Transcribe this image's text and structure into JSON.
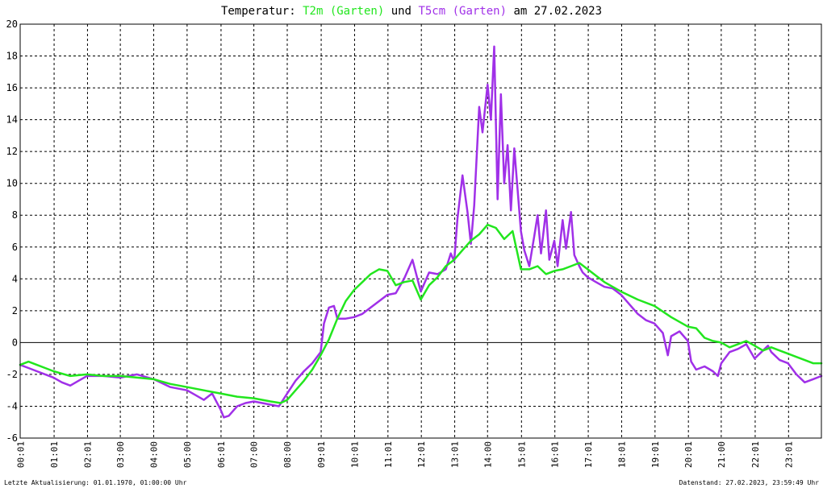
{
  "title": {
    "prefix": "Temperatur:",
    "series1": "T2m (Garten)",
    "mid": "und",
    "series2": "T5cm (Garten)",
    "suffix": "am 27.02.2023"
  },
  "footer": {
    "left": "Letzte Aktualisierung: 01.01.1970, 01:00:00 Uhr",
    "right": "Datenstand: 27.02.2023, 23:59:49 Uhr"
  },
  "colors": {
    "t2m": "#22e61e",
    "t5cm": "#a030e8",
    "grid": "#000000",
    "zero_line": "#000000"
  },
  "chart_data": {
    "type": "line",
    "title": "Temperatur: T2m (Garten) und T5cm (Garten) am 27.02.2023",
    "xlabel": "",
    "ylabel": "",
    "xlim": [
      0,
      24
    ],
    "ylim": [
      -6,
      20
    ],
    "y_ticks": [
      -6,
      -4,
      -2,
      0,
      2,
      4,
      6,
      8,
      10,
      12,
      14,
      16,
      18,
      20
    ],
    "x_tick_hours": [
      0.0167,
      1.0167,
      2.0167,
      3.0,
      4.0,
      5.0,
      6.0167,
      7.0,
      8.0,
      9.0167,
      10.0167,
      11.0167,
      12.0167,
      13.0167,
      14.0,
      15.0167,
      16.0167,
      17.0167,
      18.0167,
      19.0167,
      20.0167,
      21.0,
      22.0167,
      23.0167
    ],
    "x_tick_labels": [
      "00:01",
      "01:01",
      "02:01",
      "03:00",
      "04:00",
      "05:00",
      "06:01",
      "07:00",
      "08:00",
      "09:01",
      "10:01",
      "11:01",
      "12:01",
      "13:01",
      "14:00",
      "15:01",
      "16:01",
      "17:01",
      "18:01",
      "19:01",
      "20:01",
      "21:00",
      "22:01",
      "23:01"
    ],
    "grid": true,
    "series": [
      {
        "name": "T2m (Garten)",
        "color": "#22e61e",
        "x": [
          0,
          0.25,
          0.5,
          0.75,
          1.0,
          1.5,
          2.0,
          2.5,
          3.0,
          3.5,
          4.0,
          4.5,
          5.0,
          5.5,
          6.0,
          6.5,
          7.0,
          7.5,
          7.8,
          8.0,
          8.25,
          8.5,
          8.75,
          9.0,
          9.25,
          9.5,
          9.75,
          10.0,
          10.25,
          10.5,
          10.75,
          11.0,
          11.25,
          11.5,
          11.75,
          12.0,
          12.25,
          12.5,
          12.75,
          13.0,
          13.25,
          13.5,
          13.75,
          14.0,
          14.25,
          14.5,
          14.75,
          15.0,
          15.25,
          15.5,
          15.75,
          16.0,
          16.25,
          16.5,
          16.75,
          17.0,
          17.25,
          17.5,
          17.75,
          18.0,
          18.5,
          19.0,
          19.5,
          20.0,
          20.25,
          20.5,
          20.75,
          21.0,
          21.25,
          21.5,
          21.75,
          22.0,
          22.25,
          22.5,
          22.75,
          23.0,
          23.25,
          23.5,
          23.75,
          24.0
        ],
        "values": [
          -1.4,
          -1.2,
          -1.4,
          -1.6,
          -1.8,
          -2.1,
          -2.0,
          -2.1,
          -2.1,
          -2.2,
          -2.3,
          -2.6,
          -2.8,
          -3.0,
          -3.2,
          -3.4,
          -3.5,
          -3.7,
          -3.8,
          -3.6,
          -3.0,
          -2.4,
          -1.7,
          -0.8,
          0.2,
          1.5,
          2.6,
          3.3,
          3.8,
          4.3,
          4.6,
          4.5,
          3.6,
          3.8,
          3.9,
          2.7,
          3.6,
          4.1,
          4.8,
          5.2,
          5.8,
          6.4,
          6.8,
          7.4,
          7.2,
          6.5,
          7.0,
          4.6,
          4.6,
          4.8,
          4.3,
          4.5,
          4.6,
          4.8,
          5.0,
          4.6,
          4.2,
          3.8,
          3.5,
          3.2,
          2.7,
          2.3,
          1.6,
          1.0,
          0.9,
          0.3,
          0.1,
          0.0,
          -0.3,
          -0.1,
          0.1,
          -0.2,
          -0.5,
          -0.3,
          -0.5,
          -0.7,
          -0.9,
          -1.1,
          -1.3,
          -1.3
        ]
      },
      {
        "name": "T5cm (Garten)",
        "color": "#a030e8",
        "x": [
          0,
          0.25,
          0.5,
          0.75,
          1.0,
          1.25,
          1.5,
          1.75,
          2.0,
          2.5,
          3.0,
          3.5,
          4.0,
          4.5,
          5.0,
          5.25,
          5.5,
          5.75,
          6.0,
          6.1,
          6.25,
          6.5,
          6.75,
          7.0,
          7.25,
          7.5,
          7.75,
          8.0,
          8.25,
          8.5,
          8.75,
          9.0,
          9.1,
          9.25,
          9.4,
          9.5,
          9.75,
          10.0,
          10.25,
          10.5,
          10.75,
          11.0,
          11.25,
          11.5,
          11.75,
          11.9,
          12.0,
          12.25,
          12.5,
          12.75,
          12.9,
          13.0,
          13.1,
          13.25,
          13.4,
          13.5,
          13.6,
          13.75,
          13.85,
          14.0,
          14.1,
          14.2,
          14.3,
          14.4,
          14.5,
          14.6,
          14.7,
          14.8,
          14.9,
          15.0,
          15.1,
          15.25,
          15.4,
          15.5,
          15.6,
          15.75,
          15.85,
          16.0,
          16.1,
          16.25,
          16.35,
          16.5,
          16.6,
          16.75,
          16.85,
          17.0,
          17.25,
          17.5,
          17.75,
          18.0,
          18.25,
          18.5,
          18.75,
          19.0,
          19.25,
          19.4,
          19.5,
          19.75,
          20.0,
          20.1,
          20.25,
          20.5,
          20.75,
          20.9,
          21.0,
          21.25,
          21.5,
          21.75,
          22.0,
          22.25,
          22.4,
          22.5,
          22.75,
          23.0,
          23.25,
          23.5,
          23.75,
          24.0
        ],
        "values": [
          -1.4,
          -1.6,
          -1.8,
          -2.0,
          -2.2,
          -2.5,
          -2.7,
          -2.4,
          -2.1,
          -2.1,
          -2.2,
          -2.0,
          -2.3,
          -2.8,
          -3.0,
          -3.3,
          -3.6,
          -3.2,
          -4.2,
          -4.7,
          -4.6,
          -4.0,
          -3.8,
          -3.7,
          -3.8,
          -3.9,
          -4.0,
          -3.2,
          -2.4,
          -1.8,
          -1.3,
          -0.6,
          1.2,
          2.2,
          2.3,
          1.5,
          1.5,
          1.6,
          1.8,
          2.2,
          2.6,
          3.0,
          3.1,
          4.0,
          5.2,
          4.0,
          3.2,
          4.4,
          4.3,
          4.6,
          5.6,
          5.1,
          7.8,
          10.5,
          8.2,
          6.2,
          8.6,
          14.8,
          13.2,
          16.2,
          14.0,
          18.6,
          9.0,
          15.6,
          10.0,
          12.4,
          8.3,
          12.2,
          9.6,
          7.0,
          5.8,
          4.8,
          6.7,
          8.0,
          5.6,
          8.3,
          5.2,
          6.4,
          4.8,
          7.7,
          5.9,
          8.2,
          5.5,
          4.8,
          4.4,
          4.1,
          3.8,
          3.5,
          3.4,
          3.0,
          2.4,
          1.8,
          1.4,
          1.2,
          0.6,
          -0.8,
          0.4,
          0.7,
          0.1,
          -1.2,
          -1.7,
          -1.5,
          -1.8,
          -2.1,
          -1.3,
          -0.6,
          -0.4,
          -0.1,
          -1.0,
          -0.5,
          -0.2,
          -0.6,
          -1.1,
          -1.3,
          -2.0,
          -2.5,
          -2.3,
          -2.1
        ]
      }
    ]
  }
}
